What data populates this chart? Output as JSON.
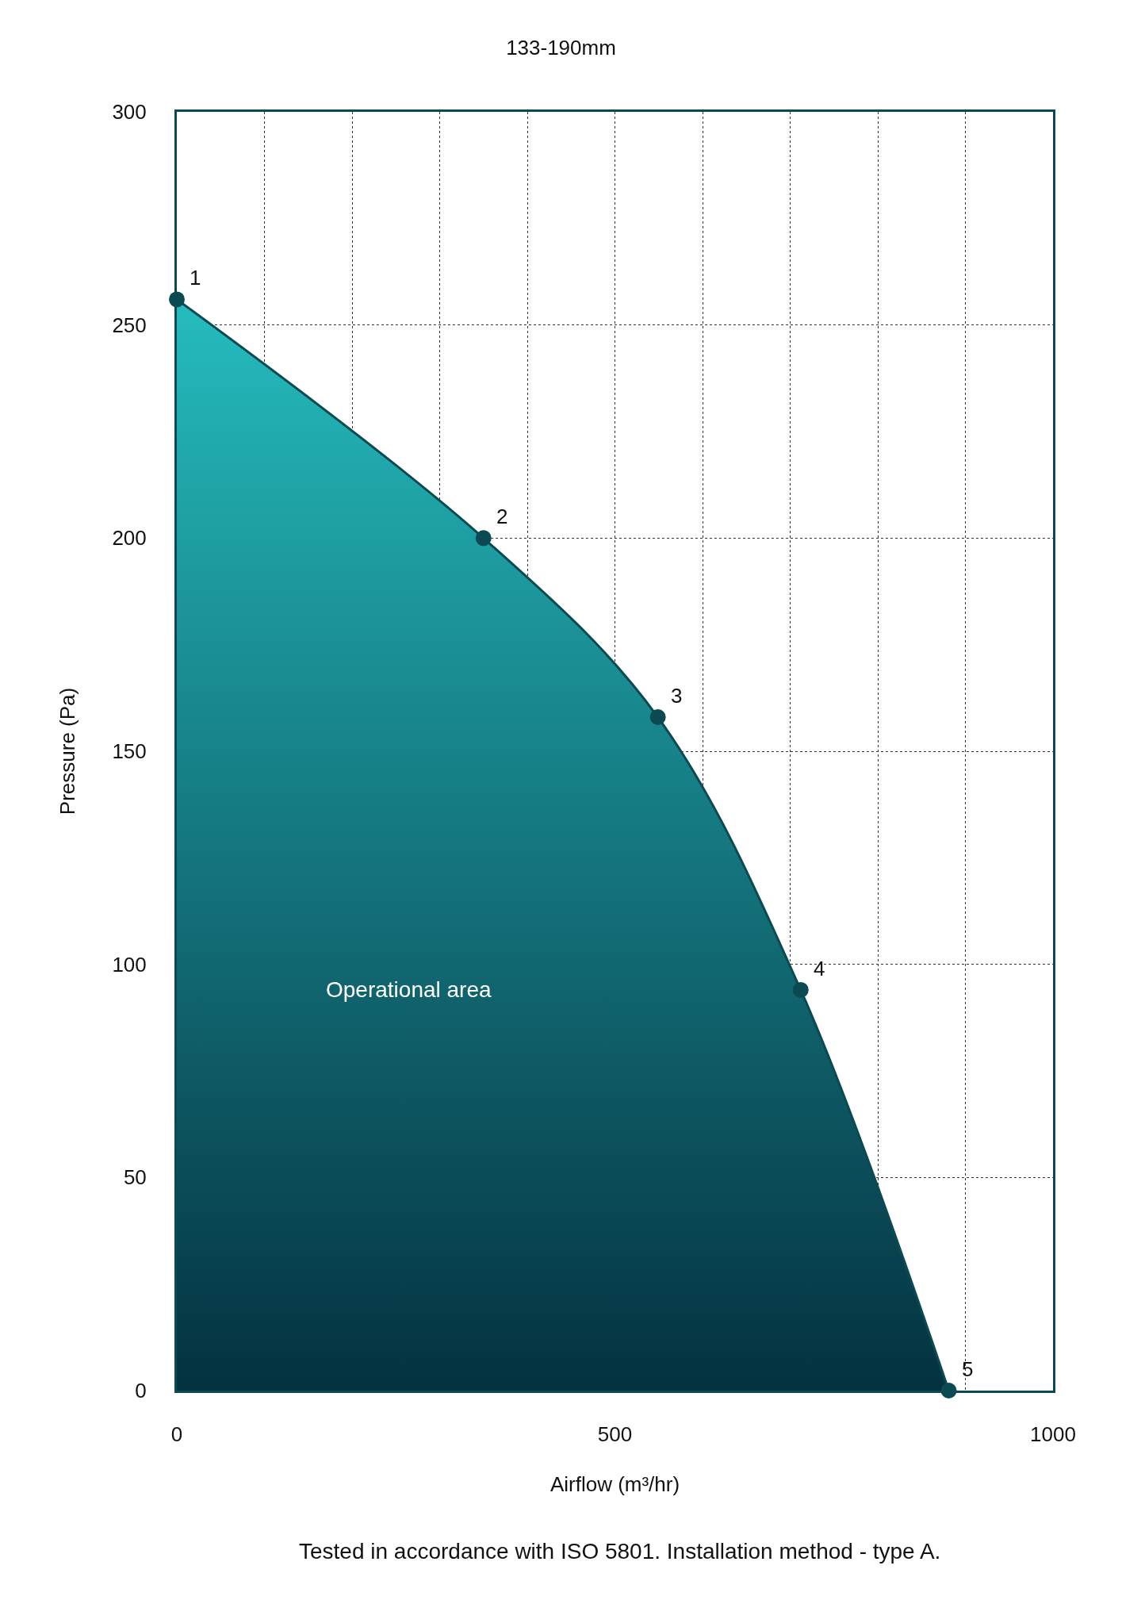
{
  "chart_data": {
    "type": "area",
    "title": "133-190mm",
    "xlabel": "Airflow (m³/hr)",
    "ylabel": "Pressure (Pa)",
    "x": [
      0,
      350,
      549,
      712,
      881
    ],
    "series": [
      {
        "color": "#25bcbe",
        "values": [
          256,
          200,
          158,
          94,
          0
        ]
      }
    ],
    "xlim": [
      0,
      1000
    ],
    "xticks": [
      0,
      {
        "value": 100,
        "label": null
      },
      {
        "value": 200,
        "label": null
      },
      {
        "value": 300,
        "label": null
      },
      {
        "value": 400,
        "label": null
      },
      500,
      {
        "value": 600,
        "label": null
      },
      {
        "value": 700,
        "label": null
      },
      {
        "value": 800,
        "label": null
      },
      {
        "value": 900,
        "label": null
      },
      1000
    ],
    "ylim": [
      0,
      300
    ],
    "yticks": [
      0,
      50,
      100,
      150,
      200,
      250,
      300
    ],
    "grid": true,
    "marker": "circle",
    "line_style": "solid",
    "annotations": [
      {
        "text": "1",
        "x": 0,
        "y": 256
      },
      {
        "text": "2",
        "x": 350,
        "y": 200
      },
      {
        "text": "3",
        "x": 549,
        "y": 158
      },
      {
        "text": "4",
        "x": 712,
        "y": 94
      },
      {
        "text": "5",
        "x": 881,
        "y": 0
      },
      "Operational area",
      "Tested in accordance with ISO 5801. Installation method - type A."
    ]
  }
}
